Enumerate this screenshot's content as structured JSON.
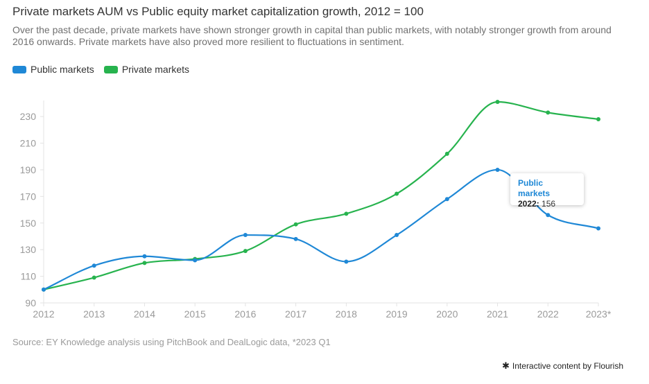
{
  "chart_data": {
    "type": "line",
    "title": "Private markets AUM vs Public equity market capitalization growth, 2012 = 100",
    "subtitle": "Over the past decade, private markets have shown stronger growth in capital than public markets, with notably stronger growth from around 2016 onwards. Private markets have also proved more resilient to fluctuations in sentiment.",
    "categories": [
      "2012",
      "2013",
      "2014",
      "2015",
      "2016",
      "2017",
      "2018",
      "2019",
      "2020",
      "2021",
      "2022",
      "2023*"
    ],
    "series": [
      {
        "name": "Public markets",
        "color": "#1f88d6",
        "values": [
          100,
          118,
          125,
          122,
          141,
          138,
          121,
          141,
          168,
          190,
          156,
          146
        ]
      },
      {
        "name": "Private markets",
        "color": "#27b34e",
        "values": [
          100,
          109,
          120,
          123,
          129,
          149,
          157,
          172,
          202,
          241,
          233,
          228
        ]
      }
    ],
    "y_ticks": [
      90,
      110,
      130,
      150,
      170,
      190,
      210,
      230
    ],
    "ylim": [
      90,
      241
    ],
    "xlabel": "",
    "ylabel": "",
    "grid": false,
    "legend": "top-left",
    "tooltip": {
      "series": "Public markets",
      "year": "2022",
      "separator": ":",
      "value": "156"
    }
  },
  "source": "Source: EY Knowledge analysis using PitchBook and DealLogic data, *2023 Q1",
  "credit": {
    "icon": "asterisk-icon",
    "text": "Interactive content by Flourish"
  }
}
